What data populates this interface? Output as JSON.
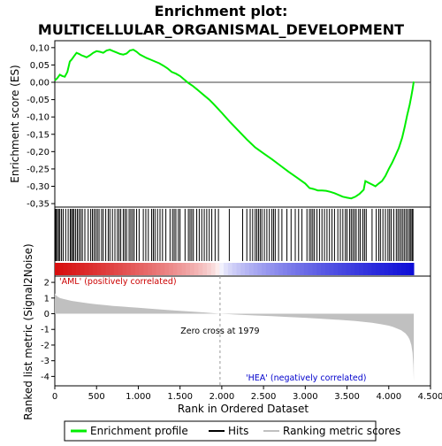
{
  "chart_data": [
    {
      "type": "line",
      "title_line1": "Enrichment plot:",
      "title_line2": "MULTICELLULAR_ORGANISMAL_DEVELOPMENT",
      "ylabel": "Enrichment score (ES)",
      "xlim": [
        0,
        4300
      ],
      "ylim": [
        -0.36,
        0.12
      ],
      "yticks": [
        0.1,
        0.05,
        0.0,
        -0.05,
        -0.1,
        -0.15,
        -0.2,
        -0.25,
        -0.3,
        -0.35
      ],
      "ytick_labels": [
        "0,10",
        "0,05",
        "0,00",
        "-0,05",
        "-0,10",
        "-0,15",
        "-0,20",
        "-0,25",
        "-0,30",
        "-0,35"
      ],
      "series": [
        {
          "name": "Enrichment profile",
          "color": "#00ee00",
          "x": [
            0,
            30,
            60,
            90,
            120,
            150,
            180,
            200,
            230,
            260,
            290,
            320,
            350,
            380,
            420,
            460,
            500,
            540,
            580,
            620,
            660,
            700,
            740,
            780,
            820,
            860,
            900,
            940,
            980,
            1020,
            1060,
            1100,
            1150,
            1200,
            1250,
            1300,
            1350,
            1400,
            1450,
            1500,
            1550,
            1600,
            1650,
            1700,
            1750,
            1800,
            1850,
            1900,
            1950,
            2000,
            2100,
            2200,
            2300,
            2400,
            2500,
            2600,
            2700,
            2800,
            2900,
            3000,
            3050,
            3100,
            3150,
            3200,
            3250,
            3300,
            3350,
            3400,
            3450,
            3500,
            3550,
            3600,
            3650,
            3700,
            3720,
            3760,
            3800,
            3840,
            3880,
            3920,
            3960,
            4000,
            4040,
            4080,
            4120,
            4160,
            4190,
            4220,
            4250,
            4270,
            4285,
            4295,
            4300
          ],
          "y": [
            0.005,
            0.012,
            0.022,
            0.018,
            0.016,
            0.03,
            0.06,
            0.065,
            0.075,
            0.085,
            0.082,
            0.078,
            0.075,
            0.072,
            0.078,
            0.085,
            0.09,
            0.088,
            0.085,
            0.092,
            0.094,
            0.09,
            0.086,
            0.082,
            0.08,
            0.083,
            0.092,
            0.094,
            0.088,
            0.08,
            0.075,
            0.07,
            0.065,
            0.06,
            0.055,
            0.048,
            0.04,
            0.03,
            0.025,
            0.018,
            0.008,
            -0.002,
            -0.01,
            -0.02,
            -0.03,
            -0.04,
            -0.05,
            -0.062,
            -0.075,
            -0.088,
            -0.115,
            -0.14,
            -0.165,
            -0.188,
            -0.205,
            -0.222,
            -0.24,
            -0.258,
            -0.275,
            -0.292,
            -0.305,
            -0.308,
            -0.312,
            -0.312,
            -0.313,
            -0.316,
            -0.32,
            -0.325,
            -0.33,
            -0.333,
            -0.335,
            -0.33,
            -0.322,
            -0.31,
            -0.285,
            -0.29,
            -0.295,
            -0.3,
            -0.292,
            -0.285,
            -0.27,
            -0.25,
            -0.232,
            -0.212,
            -0.19,
            -0.16,
            -0.13,
            -0.095,
            -0.065,
            -0.04,
            -0.02,
            -0.005,
            0.002
          ]
        }
      ]
    },
    {
      "type": "other",
      "name": "Hits",
      "hit_ranks": [
        5,
        15,
        30,
        45,
        60,
        80,
        100,
        130,
        160,
        185,
        200,
        215,
        230,
        250,
        270,
        290,
        310,
        330,
        360,
        400,
        430,
        450,
        470,
        490,
        510,
        530,
        560,
        580,
        610,
        640,
        660,
        690,
        720,
        750,
        770,
        790,
        820,
        840,
        860,
        890,
        910,
        930,
        950,
        980,
        1010,
        1060,
        1090,
        1120,
        1160,
        1180,
        1200,
        1230,
        1260,
        1290,
        1330,
        1380,
        1410,
        1430,
        1450,
        1480,
        1500,
        1560,
        1600,
        1620,
        1640,
        1660,
        1700,
        1730,
        1760,
        1790,
        1820,
        1850,
        1880,
        1920,
        1960,
        2090,
        2250,
        2300,
        2340,
        2370,
        2400,
        2420,
        2440,
        2460,
        2480,
        2510,
        2540,
        2570,
        2600,
        2620,
        2640,
        2680,
        2720,
        2780,
        2830,
        2880,
        2920,
        2960,
        3020,
        3050,
        3070,
        3090,
        3110,
        3140,
        3170,
        3200,
        3230,
        3260,
        3290,
        3320,
        3350,
        3390,
        3420,
        3450,
        3480,
        3500,
        3530,
        3550,
        3570,
        3590,
        3610,
        3640,
        3660,
        3690,
        3710,
        3730,
        3800,
        3850,
        3880,
        3900,
        3930,
        3960,
        3990,
        4010,
        4030,
        4060,
        4090,
        4110,
        4130,
        4150,
        4170,
        4190,
        4210,
        4230,
        4250,
        4265,
        4280,
        4290
      ]
    },
    {
      "type": "area",
      "ylabel": "Ranked list metric (Signal2Noise)",
      "xlabel": "Rank in Ordered Dataset",
      "xlim": [
        0,
        4500
      ],
      "ylim": [
        -4.6,
        2.4
      ],
      "xticks": [
        0,
        500,
        1000,
        1500,
        2000,
        2500,
        3000,
        3500,
        4000,
        4500
      ],
      "xtick_labels": [
        "0",
        "500",
        "1.000",
        "1.500",
        "2.000",
        "2.500",
        "3.000",
        "3.500",
        "4.000",
        "4.500"
      ],
      "yticks": [
        2,
        1,
        0,
        -1,
        -2,
        -3,
        -4
      ],
      "ytick_labels": [
        "2",
        "1",
        "0",
        "-1",
        "-2",
        "-3",
        "-4"
      ],
      "x": [
        0,
        10,
        30,
        60,
        100,
        150,
        200,
        300,
        400,
        500,
        600,
        700,
        800,
        900,
        1000,
        1200,
        1400,
        1600,
        1800,
        1979,
        2200,
        2400,
        2600,
        2800,
        3000,
        3200,
        3400,
        3600,
        3800,
        3900,
        4000,
        4050,
        4100,
        4150,
        4200,
        4230,
        4250,
        4270,
        4285,
        4295,
        4300
      ],
      "values": [
        1.3,
        1.2,
        1.1,
        1.0,
        0.95,
        0.88,
        0.82,
        0.74,
        0.66,
        0.6,
        0.55,
        0.5,
        0.46,
        0.42,
        0.38,
        0.3,
        0.22,
        0.15,
        0.08,
        0.0,
        -0.06,
        -0.11,
        -0.16,
        -0.21,
        -0.26,
        -0.32,
        -0.39,
        -0.47,
        -0.58,
        -0.66,
        -0.76,
        -0.84,
        -0.94,
        -1.06,
        -1.25,
        -1.45,
        -1.65,
        -2.0,
        -2.5,
        -3.3,
        -4.3
      ],
      "color": "#c0c0c0",
      "zero_cross_label": "Zero cross at 1979",
      "zero_cross_x": 1979,
      "pos_label": "'AML' (positively correlated)",
      "neg_label": "'HEA' (negatively correlated)",
      "pos_color": "#cc0000",
      "neg_color": "#0000cc"
    }
  ],
  "legend": {
    "items": [
      {
        "label": "Enrichment profile",
        "color": "#00ee00"
      },
      {
        "label": "Hits",
        "color": "#000000"
      },
      {
        "label": "Ranking metric scores",
        "color": "#c0c0c0"
      }
    ]
  }
}
